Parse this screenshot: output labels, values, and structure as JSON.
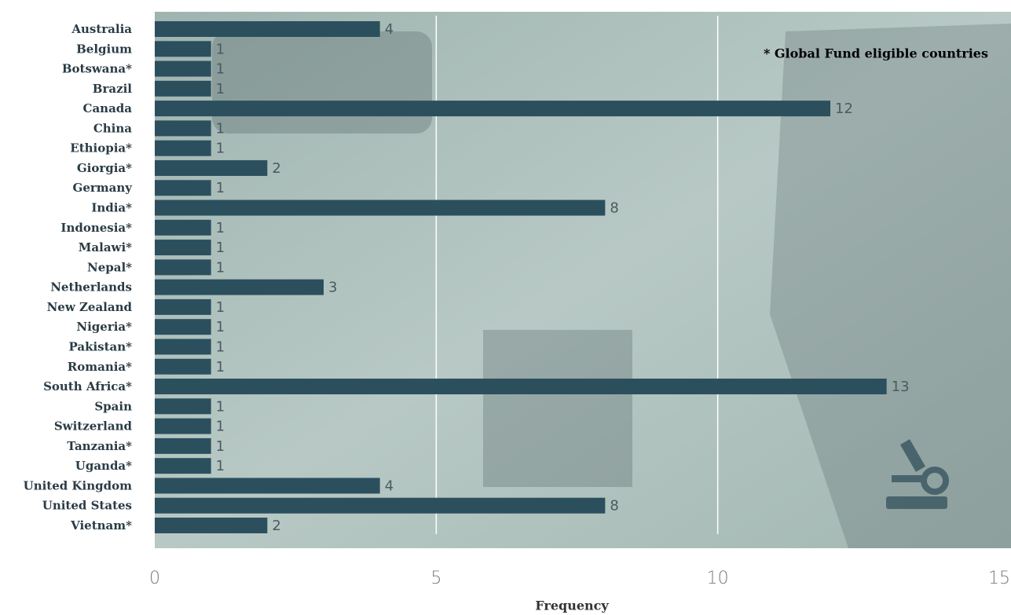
{
  "chart_data": {
    "type": "hbar",
    "categories": [
      "Australia",
      "Belgium",
      "Botswana*",
      "Brazil",
      "Canada",
      "China",
      "Ethiopia*",
      "Giorgia*",
      "Germany",
      "India*",
      "Indonesia*",
      "Malawi*",
      "Nepal*",
      "Netherlands",
      "New Zealand",
      "Nigeria*",
      "Pakistan*",
      "Romania*",
      "South Africa*",
      "Spain",
      "Switzerland",
      "Tanzania*",
      "Uganda*",
      "United Kingdom",
      "United States",
      "Vietnam*"
    ],
    "values": [
      4,
      1,
      1,
      1,
      12,
      1,
      1,
      2,
      1,
      8,
      1,
      1,
      1,
      3,
      1,
      1,
      1,
      1,
      13,
      1,
      1,
      1,
      1,
      4,
      8,
      2
    ],
    "color": "#2c4f5e",
    "xlim": [
      0,
      15
    ],
    "xticks": [
      0,
      5,
      10,
      15
    ],
    "grid": true,
    "xlabel": "Frequency",
    "annotation": "* Global Fund eligible countries"
  }
}
